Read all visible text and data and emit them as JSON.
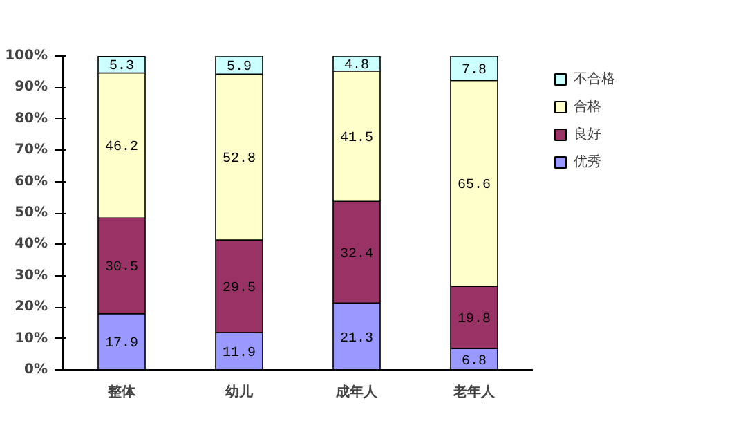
{
  "chart_data": {
    "type": "bar",
    "stacked": true,
    "categories": [
      "整体",
      "幼儿",
      "成年人",
      "老年人"
    ],
    "series": [
      {
        "name": "优秀",
        "color": "#9999ff",
        "values": [
          17.9,
          11.9,
          21.3,
          6.8
        ]
      },
      {
        "name": "良好",
        "color": "#993366",
        "values": [
          30.5,
          29.5,
          32.4,
          19.8
        ]
      },
      {
        "name": "合格",
        "color": "#ffffcc",
        "values": [
          46.2,
          52.8,
          41.5,
          65.6
        ]
      },
      {
        "name": "不合格",
        "color": "#ccffff",
        "values": [
          5.3,
          5.9,
          4.8,
          7.8
        ]
      }
    ],
    "ylim": [
      0,
      100
    ],
    "yticks": [
      {
        "value": 0,
        "label": "0%"
      },
      {
        "value": 10,
        "label": "10%"
      },
      {
        "value": 20,
        "label": "20%"
      },
      {
        "value": 30,
        "label": "30%"
      },
      {
        "value": 40,
        "label": "40%"
      },
      {
        "value": 50,
        "label": "50%"
      },
      {
        "value": 60,
        "label": "60%"
      },
      {
        "value": 70,
        "label": "70%"
      },
      {
        "value": 80,
        "label": "80%"
      },
      {
        "value": 90,
        "label": "90%"
      },
      {
        "value": 100,
        "label": "100%"
      }
    ],
    "data_labels": true,
    "legend": "right",
    "grid": false
  }
}
